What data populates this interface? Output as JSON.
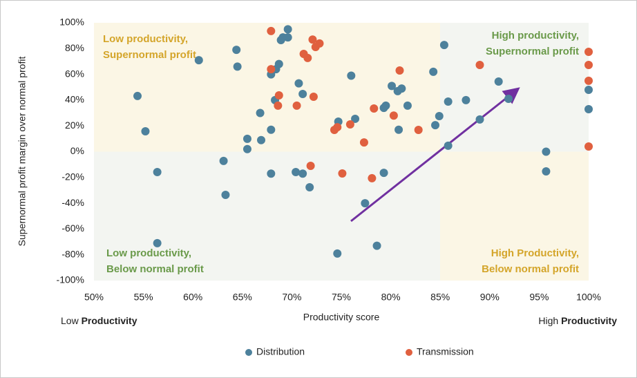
{
  "chart_data": {
    "type": "scatter",
    "x_label": "Productivity score",
    "y_label": "Supernormal profit margin over normal profit",
    "xlim": [
      50,
      100
    ],
    "ylim": [
      -100,
      100
    ],
    "xticks": [
      {
        "value": 50,
        "label": "50%"
      },
      {
        "value": 55,
        "label": "55%"
      },
      {
        "value": 60,
        "label": "60%"
      },
      {
        "value": 65,
        "label": "65%"
      },
      {
        "value": 70,
        "label": "70%"
      },
      {
        "value": 75,
        "label": "75%"
      },
      {
        "value": 80,
        "label": "80%"
      },
      {
        "value": 85,
        "label": "85%"
      },
      {
        "value": 90,
        "label": "90%"
      },
      {
        "value": 95,
        "label": "95%"
      },
      {
        "value": 100,
        "label": "100%"
      }
    ],
    "yticks": [
      {
        "value": 100,
        "label": "100%"
      },
      {
        "value": 80,
        "label": "80%"
      },
      {
        "value": 60,
        "label": "60%"
      },
      {
        "value": 40,
        "label": "40%"
      },
      {
        "value": 20,
        "label": "20%"
      },
      {
        "value": 0,
        "label": "0%"
      },
      {
        "value": -20,
        "label": "-20%"
      },
      {
        "value": -40,
        "label": "-40%"
      },
      {
        "value": -60,
        "label": "-60%"
      },
      {
        "value": -80,
        "label": "-80%"
      },
      {
        "value": -100,
        "label": "-100%"
      }
    ],
    "grid": false,
    "legend": "bottom",
    "x_end_labels": [
      {
        "plain": "Low",
        "bold": "Productivity"
      },
      {
        "plain": "High",
        "bold": "Productivity"
      }
    ],
    "quadrant_labels": [
      {
        "lines": [
          "Low productivity,",
          "Supernormal profit"
        ],
        "color": "#d4a52a"
      },
      {
        "lines": [
          "High productivity,",
          "Supernormal profit"
        ],
        "color": "#6a9a4a"
      },
      {
        "lines": [
          "Low productivity,",
          "Below normal profit"
        ],
        "color": "#6a9a4a"
      },
      {
        "lines": [
          "High Productivity,",
          "Below normal profit"
        ],
        "color": "#d4a52a"
      }
    ],
    "series": [
      {
        "name": "Distribution",
        "color": "#4d819c",
        "x": [
          54.4,
          55.2,
          56.4,
          56.4,
          60.6,
          63.1,
          63.3,
          64.4,
          64.5,
          65.5,
          65.5,
          66.8,
          66.9,
          67.9,
          67.9,
          67.9,
          68.3,
          68.4,
          68.7,
          68.9,
          69.1,
          69.6,
          69.6,
          70.4,
          70.7,
          71.1,
          71.1,
          71.8,
          74.7,
          74.6,
          76.0,
          76.4,
          77.4,
          78.6,
          79.3,
          79.3,
          79.5,
          80.1,
          80.7,
          81.1,
          80.8,
          81.7,
          84.3,
          84.5,
          84.9,
          85.4,
          85.8,
          85.8,
          87.6,
          89.0,
          90.9,
          91.9,
          95.7,
          95.7,
          100,
          100
        ],
        "values": [
          43.2,
          15.8,
          -15.8,
          -71,
          71,
          -7.2,
          -33.5,
          79,
          66,
          10,
          2,
          30,
          9,
          17,
          60,
          -17,
          40,
          64,
          68,
          86.6,
          88.7,
          95,
          88.7,
          -15.8,
          53,
          -17,
          44.8,
          -27.6,
          23.3,
          -79,
          59,
          25.5,
          -40,
          -73,
          -16.4,
          34,
          35.7,
          51,
          47,
          49,
          17,
          35.7,
          62,
          20.6,
          27.6,
          82.8,
          38.9,
          4.6,
          40,
          25,
          54.4,
          41,
          0,
          -15.3,
          48,
          33
        ]
      },
      {
        "name": "Transmission",
        "color": "#e0603f",
        "x": [
          67.9,
          67.9,
          68.7,
          68.6,
          70.5,
          71.2,
          71.6,
          72.1,
          72.2,
          72.4,
          72.8,
          71.9,
          74.3,
          74.6,
          75.1,
          75.9,
          77.3,
          78.1,
          78.3,
          80.3,
          80.9,
          82.8,
          89.0,
          100,
          100,
          100,
          100
        ],
        "values": [
          93.6,
          64,
          43.7,
          35.7,
          35.7,
          75.9,
          72.7,
          87,
          42.6,
          81.2,
          84,
          -11,
          16.9,
          19,
          -16.9,
          21.2,
          7.2,
          -20.6,
          33.5,
          28,
          63,
          16.9,
          67.3,
          77.5,
          67.3,
          55,
          4
        ]
      }
    ]
  }
}
